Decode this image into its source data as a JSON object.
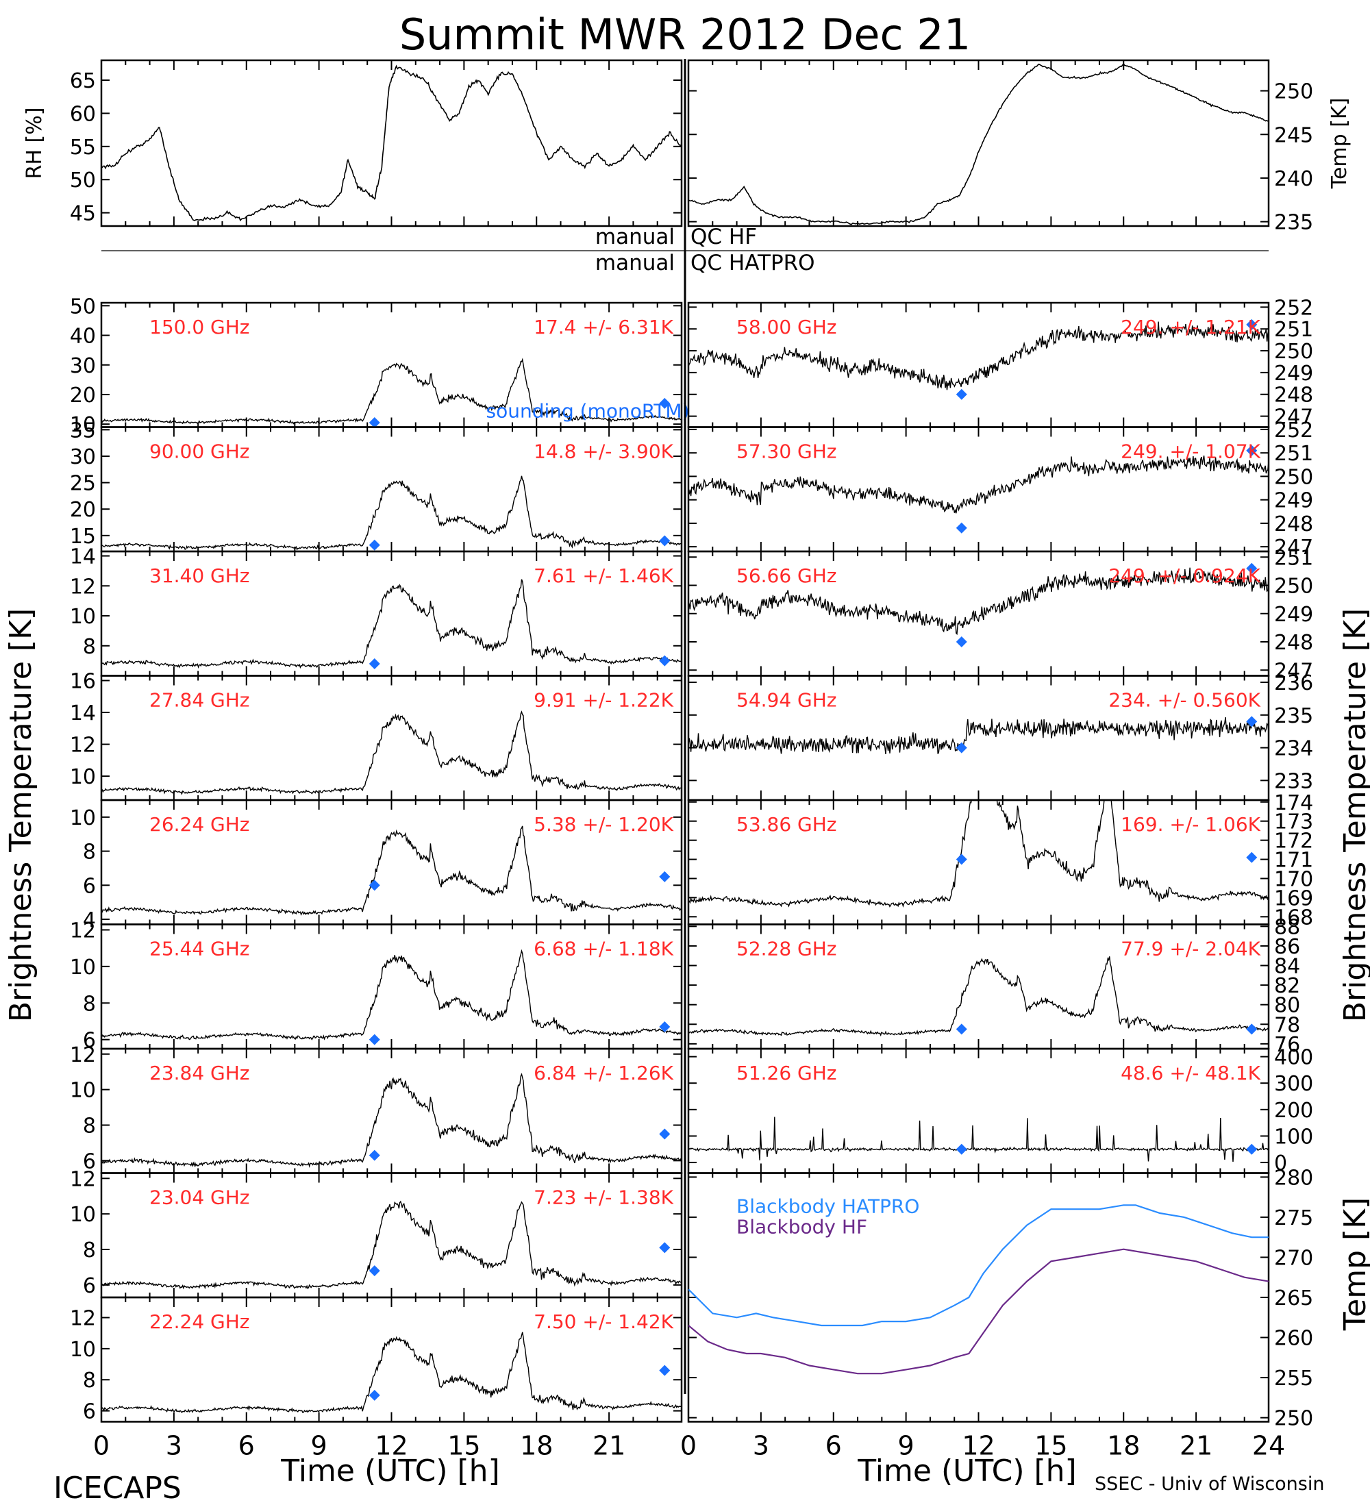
{
  "title": "Summit MWR 2012 Dec 21",
  "footer": {
    "left_label": "ICECAPS",
    "right_label": "SSEC - Univ of Wisconsin",
    "xlabel_left": "Time (UTC) [h]",
    "xlabel_right": "Time (UTC) [h]"
  },
  "side_labels": {
    "left_main": "Brightness Temperature [K]",
    "right_main": "Brightness Temperature [K]",
    "bottom_right": "Temp [K]"
  },
  "qc": {
    "line1_left": "manual",
    "line1_right": "QC HF",
    "line2_left": "manual",
    "line2_right": "QC HATPRO"
  },
  "colors": {
    "trace": "#000000",
    "label_red": "#ff2a2a",
    "sounding_blue": "#1a6fff",
    "bb_hatpro": "#2a8cff",
    "bb_hf": "#6b2a8a"
  },
  "chart_data": [
    {
      "id": "rh",
      "type": "line",
      "ylabel": "RH [%]",
      "ylim": [
        43,
        68
      ],
      "yticks": [
        45,
        50,
        55,
        60,
        65
      ],
      "xlim": [
        0,
        24
      ],
      "series": [
        {
          "values": [
            [
              0,
              52
            ],
            [
              0.5,
              52
            ],
            [
              1,
              54
            ],
            [
              1.5,
              55
            ],
            [
              2,
              56
            ],
            [
              2.4,
              58
            ],
            [
              2.8,
              52
            ],
            [
              3.2,
              47
            ],
            [
              3.8,
              44
            ],
            [
              4.5,
              44
            ],
            [
              5.2,
              45
            ],
            [
              5.8,
              44
            ],
            [
              6.4,
              45
            ],
            [
              7,
              46
            ],
            [
              7.6,
              46
            ],
            [
              8.2,
              47
            ],
            [
              8.8,
              46
            ],
            [
              9.4,
              46
            ],
            [
              9.9,
              48
            ],
            [
              10.2,
              53
            ],
            [
              10.6,
              49
            ],
            [
              11,
              48
            ],
            [
              11.3,
              47
            ],
            [
              11.6,
              52
            ],
            [
              11.9,
              64
            ],
            [
              12.2,
              67
            ],
            [
              12.8,
              66
            ],
            [
              13.4,
              65
            ],
            [
              13.9,
              62
            ],
            [
              14.4,
              59
            ],
            [
              14.8,
              60
            ],
            [
              15.2,
              64
            ],
            [
              15.6,
              65
            ],
            [
              16,
              63
            ],
            [
              16.5,
              66
            ],
            [
              17,
              66
            ],
            [
              17.5,
              62
            ],
            [
              18,
              57
            ],
            [
              18.5,
              53
            ],
            [
              19,
              55
            ],
            [
              19.5,
              53
            ],
            [
              20,
              52
            ],
            [
              20.5,
              54
            ],
            [
              21,
              52
            ],
            [
              21.5,
              53
            ],
            [
              22,
              55
            ],
            [
              22.5,
              53
            ],
            [
              23,
              55
            ],
            [
              23.5,
              57
            ],
            [
              24,
              55
            ]
          ]
        }
      ]
    },
    {
      "id": "temp_top",
      "type": "line",
      "ylabel": "Temp [K]",
      "ylim": [
        234.5,
        253.5
      ],
      "yticks": [
        235,
        240,
        245,
        250
      ],
      "xlim": [
        0,
        24
      ],
      "series": [
        {
          "values": [
            [
              0,
              237.5
            ],
            [
              0.6,
              237
            ],
            [
              1.2,
              237.5
            ],
            [
              1.8,
              237.5
            ],
            [
              2.3,
              239
            ],
            [
              2.7,
              237
            ],
            [
              3.2,
              236
            ],
            [
              3.8,
              235.5
            ],
            [
              4.5,
              235.5
            ],
            [
              5.2,
              235
            ],
            [
              6,
              235
            ],
            [
              6.8,
              234.8
            ],
            [
              7.6,
              234.8
            ],
            [
              8.4,
              235
            ],
            [
              9.2,
              235
            ],
            [
              9.8,
              235.5
            ],
            [
              10.3,
              237
            ],
            [
              10.8,
              237.5
            ],
            [
              11.2,
              238
            ],
            [
              11.6,
              240
            ],
            [
              12,
              243
            ],
            [
              12.5,
              246
            ],
            [
              13,
              248.5
            ],
            [
              13.5,
              250.5
            ],
            [
              14,
              252
            ],
            [
              14.5,
              253
            ],
            [
              15,
              252.5
            ],
            [
              15.5,
              251.5
            ],
            [
              16,
              251.5
            ],
            [
              16.5,
              251.5
            ],
            [
              17,
              252
            ],
            [
              17.5,
              252.2
            ],
            [
              18,
              253
            ],
            [
              18.5,
              252.5
            ],
            [
              19,
              251.5
            ],
            [
              19.5,
              251
            ],
            [
              20,
              250.5
            ],
            [
              20.5,
              249.8
            ],
            [
              21,
              249.2
            ],
            [
              21.5,
              248.5
            ],
            [
              22,
              248
            ],
            [
              22.5,
              247.5
            ],
            [
              23,
              247.5
            ],
            [
              23.5,
              247
            ],
            [
              24,
              246.5
            ]
          ]
        }
      ]
    },
    {
      "id": "p150",
      "type": "line",
      "label": "150.0 GHz",
      "stat": "17.4 +/-  6.31K",
      "ylim": [
        9,
        51
      ],
      "yticks": [
        10,
        20,
        30,
        40,
        50
      ],
      "xlim": [
        0,
        24
      ],
      "baseline": 11,
      "feat_scale": 1.6,
      "sounding": [
        [
          11.3,
          10.5
        ],
        [
          23.3,
          17
        ]
      ],
      "annotation": "sounding (monoRTM)"
    },
    {
      "id": "p90",
      "type": "line",
      "label": "90.00 GHz",
      "stat": "14.8 +/-  3.90K",
      "ylim": [
        12,
        35.5
      ],
      "yticks": [
        15,
        20,
        25,
        30,
        35
      ],
      "xlim": [
        0,
        24
      ],
      "baseline": 13,
      "feat_scale": 1.0,
      "sounding": [
        [
          11.3,
          13.2
        ],
        [
          23.3,
          14
        ]
      ]
    },
    {
      "id": "p31",
      "type": "line",
      "label": "31.40 GHz",
      "stat": "7.61 +/- 1.46K",
      "ylim": [
        6,
        14.3
      ],
      "yticks": [
        8,
        10,
        12,
        14
      ],
      "xlim": [
        0,
        24
      ],
      "baseline": 6.8,
      "feat_scale": 0.42,
      "sounding": [
        [
          11.3,
          6.8
        ],
        [
          23.3,
          7
        ]
      ]
    },
    {
      "id": "p27",
      "type": "line",
      "label": "27.84 GHz",
      "stat": "9.91 +/- 1.22K",
      "ylim": [
        8.5,
        16.3
      ],
      "yticks": [
        10,
        12,
        14,
        16
      ],
      "xlim": [
        0,
        24
      ],
      "baseline": 9.1,
      "feat_scale": 0.38,
      "sounding": []
    },
    {
      "id": "p26",
      "type": "line",
      "label": "26.24 GHz",
      "stat": "5.38 +/- 1.20K",
      "ylim": [
        3.7,
        11
      ],
      "yticks": [
        4,
        6,
        8,
        10
      ],
      "xlim": [
        0,
        24
      ],
      "baseline": 4.5,
      "feat_scale": 0.38,
      "sounding": [
        [
          11.3,
          6
        ],
        [
          23.3,
          6.5
        ]
      ]
    },
    {
      "id": "p25",
      "type": "line",
      "label": "25.44 GHz",
      "stat": "6.68 +/- 1.18K",
      "ylim": [
        5.5,
        12.3
      ],
      "yticks": [
        6,
        8,
        10,
        12
      ],
      "xlim": [
        0,
        24
      ],
      "baseline": 6.2,
      "feat_scale": 0.36,
      "sounding": [
        [
          11.3,
          6
        ],
        [
          23.3,
          6.7
        ]
      ]
    },
    {
      "id": "p23_84",
      "type": "line",
      "label": "23.84 GHz",
      "stat": "6.84 +/- 1.26K",
      "ylim": [
        5.3,
        12.3
      ],
      "yticks": [
        6,
        8,
        10,
        12
      ],
      "xlim": [
        0,
        24
      ],
      "baseline": 5.9,
      "feat_scale": 0.38,
      "sounding": [
        [
          11.3,
          6.3
        ],
        [
          23.3,
          7.5
        ]
      ]
    },
    {
      "id": "p23_04",
      "type": "line",
      "label": "23.04 GHz",
      "stat": "7.23 +/- 1.38K",
      "ylim": [
        5.3,
        12.3
      ],
      "yticks": [
        6,
        8,
        10,
        12
      ],
      "xlim": [
        0,
        24
      ],
      "baseline": 6.0,
      "feat_scale": 0.38,
      "sounding": [
        [
          11.3,
          6.8
        ],
        [
          23.3,
          8.1
        ]
      ]
    },
    {
      "id": "p22",
      "type": "line",
      "label": "22.24 GHz",
      "stat": "7.50 +/- 1.42K",
      "ylim": [
        5.3,
        13.3
      ],
      "yticks": [
        6,
        8,
        10,
        12
      ],
      "xlim": [
        0,
        24
      ],
      "baseline": 6.1,
      "feat_scale": 0.38,
      "sounding": [
        [
          11.3,
          7
        ],
        [
          23.3,
          8.6
        ]
      ],
      "xticks": [
        0,
        3,
        6,
        9,
        12,
        15,
        18,
        21
      ]
    },
    {
      "id": "p58",
      "type": "line",
      "label": "58.00 GHz",
      "stat": "249. +/- 1.21K",
      "ylim": [
        246.5,
        252.2
      ],
      "yticks": [
        247,
        248,
        249,
        250,
        251,
        252
      ],
      "xlim": [
        0,
        24
      ],
      "shape": "temp",
      "tmin": 248.2,
      "tmax": 251.1,
      "tnoise": 0.55,
      "sounding": [
        [
          11.3,
          248
        ],
        [
          23.3,
          251.2
        ]
      ]
    },
    {
      "id": "p57",
      "type": "line",
      "label": "57.30 GHz",
      "stat": "249. +/- 1.07K",
      "ylim": [
        246.8,
        252.1
      ],
      "yticks": [
        247,
        248,
        249,
        250,
        251,
        252
      ],
      "xlim": [
        0,
        24
      ],
      "shape": "temp",
      "tmin": 248.5,
      "tmax": 250.7,
      "tnoise": 0.5,
      "sounding": [
        [
          11.3,
          247.8
        ],
        [
          23.3,
          251.1
        ]
      ]
    },
    {
      "id": "p56",
      "type": "line",
      "label": "56.66 GHz",
      "stat": "249. +/- 0.924K",
      "ylim": [
        246.8,
        251.2
      ],
      "yticks": [
        247,
        248,
        249,
        250,
        251
      ],
      "xlim": [
        0,
        24
      ],
      "shape": "temp",
      "tmin": 248.4,
      "tmax": 250.4,
      "tnoise": 0.45,
      "sounding": [
        [
          11.3,
          248
        ],
        [
          23.3,
          250.6
        ]
      ]
    },
    {
      "id": "p54",
      "type": "line",
      "label": "54.94 GHz",
      "stat": "234. +/- 0.560K",
      "ylim": [
        232.4,
        236.2
      ],
      "yticks": [
        233,
        234,
        235,
        236
      ],
      "xlim": [
        0,
        24
      ],
      "shape": "flat",
      "tmin": 234.1,
      "tmax": 234.6,
      "tnoise": 0.45,
      "sounding": [
        [
          11.3,
          234
        ],
        [
          23.3,
          234.8
        ]
      ]
    },
    {
      "id": "p53",
      "type": "line",
      "label": "53.86 GHz",
      "stat": "169. +/- 1.06K",
      "ylim": [
        167.6,
        174.1
      ],
      "yticks": [
        168,
        169,
        170,
        171,
        172,
        173,
        174
      ],
      "xlim": [
        0,
        24
      ],
      "baseline": 168.8,
      "feat_scale": 0.5,
      "sounding": [
        [
          11.3,
          171
        ],
        [
          23.3,
          171.1
        ]
      ]
    },
    {
      "id": "p52",
      "type": "line",
      "label": "52.28 GHz",
      "stat": "77.9 +/- 2.04K",
      "ylim": [
        75.5,
        88.2
      ],
      "yticks": [
        76,
        78,
        80,
        82,
        84,
        86,
        88
      ],
      "xlim": [
        0,
        24
      ],
      "baseline": 77.2,
      "feat_scale": 0.6,
      "sounding": [
        [
          11.3,
          77.5
        ],
        [
          23.3,
          77.5
        ]
      ]
    },
    {
      "id": "p51",
      "type": "line",
      "label": "51.26 GHz",
      "stat": "48.6 +/- 48.1K",
      "ylim": [
        -40,
        430
      ],
      "yticks": [
        0,
        100,
        200,
        300,
        400
      ],
      "xlim": [
        0,
        24
      ],
      "shape": "spiky",
      "tmin": 50,
      "tmax": 50,
      "tnoise": 8,
      "sounding": [
        [
          11.3,
          50
        ],
        [
          23.3,
          50
        ]
      ]
    },
    {
      "id": "bb",
      "type": "line",
      "ylim": [
        249.5,
        280.5
      ],
      "yticks": [
        250,
        255,
        260,
        265,
        270,
        275,
        280
      ],
      "xlim": [
        0,
        24
      ],
      "xticks": [
        0,
        3,
        6,
        9,
        12,
        15,
        18,
        21,
        24
      ],
      "series": [
        {
          "name": "Blackbody HATPRO",
          "values": [
            [
              0,
              266
            ],
            [
              1,
              263
            ],
            [
              2,
              262.5
            ],
            [
              2.8,
              263
            ],
            [
              3.5,
              262.5
            ],
            [
              4.5,
              262
            ],
            [
              5.5,
              261.5
            ],
            [
              6.5,
              261.5
            ],
            [
              7.2,
              261.5
            ],
            [
              8,
              262
            ],
            [
              9,
              262
            ],
            [
              10,
              262.5
            ],
            [
              11,
              264
            ],
            [
              11.6,
              265
            ],
            [
              12.2,
              268
            ],
            [
              13,
              271
            ],
            [
              14,
              274
            ],
            [
              15,
              276
            ],
            [
              16,
              276
            ],
            [
              17,
              276
            ],
            [
              18,
              276.5
            ],
            [
              18.5,
              276.5
            ],
            [
              19.5,
              275.5
            ],
            [
              20.5,
              275
            ],
            [
              21.5,
              274
            ],
            [
              22.5,
              273
            ],
            [
              23.3,
              272.5
            ],
            [
              24,
              272.5
            ]
          ]
        },
        {
          "name": "Blackbody HF",
          "values": [
            [
              0,
              261.5
            ],
            [
              0.8,
              259.5
            ],
            [
              1.6,
              258.5
            ],
            [
              2.4,
              258
            ],
            [
              3,
              258
            ],
            [
              4,
              257.5
            ],
            [
              5,
              256.5
            ],
            [
              6,
              256
            ],
            [
              7,
              255.5
            ],
            [
              8,
              255.5
            ],
            [
              9,
              256
            ],
            [
              10,
              256.5
            ],
            [
              11,
              257.5
            ],
            [
              11.6,
              258
            ],
            [
              12.3,
              261
            ],
            [
              13,
              264
            ],
            [
              14,
              267
            ],
            [
              15,
              269.5
            ],
            [
              16,
              270
            ],
            [
              17,
              270.5
            ],
            [
              18,
              271
            ],
            [
              19,
              270.5
            ],
            [
              20,
              270
            ],
            [
              21,
              269.5
            ],
            [
              22,
              268.5
            ],
            [
              23,
              267.5
            ],
            [
              24,
              267
            ]
          ]
        }
      ]
    }
  ]
}
